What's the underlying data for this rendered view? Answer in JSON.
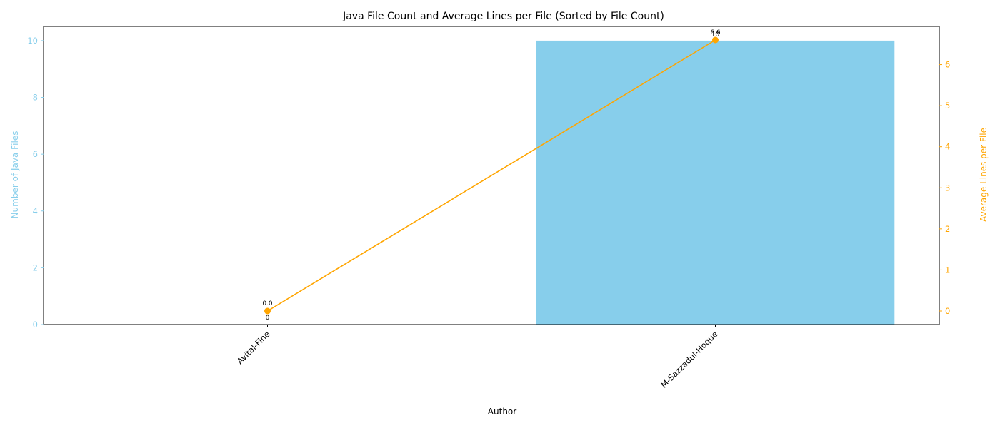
{
  "chart_data": {
    "type": "bar",
    "title": "Java File Count and Average Lines per File (Sorted by File Count)",
    "xlabel": "Author",
    "categories": [
      "Avital-Fine",
      "M-Sazzadul-Hoque"
    ],
    "series": [
      {
        "name": "Number of Java Files",
        "type": "bar",
        "axis": "left",
        "values": [
          0,
          10
        ],
        "labels": [
          "0",
          "10"
        ],
        "color": "#87CEEB"
      },
      {
        "name": "Average Lines per File",
        "type": "line",
        "axis": "right",
        "values": [
          0.0,
          6.6
        ],
        "labels": [
          "0.0",
          "6.6"
        ],
        "color": "#FFA500"
      }
    ],
    "y_left": {
      "label": "Number of Java Files",
      "ylim": [
        0,
        10.5
      ],
      "ticks": [
        0,
        2,
        4,
        6,
        8,
        10
      ],
      "color": "#87CEEB"
    },
    "y_right": {
      "label": "Average Lines per File",
      "ylim": [
        -0.33,
        6.93
      ],
      "ticks": [
        0,
        1,
        2,
        3,
        4,
        5,
        6
      ],
      "color": "#FFA500"
    },
    "grid": false,
    "legend": "none"
  }
}
